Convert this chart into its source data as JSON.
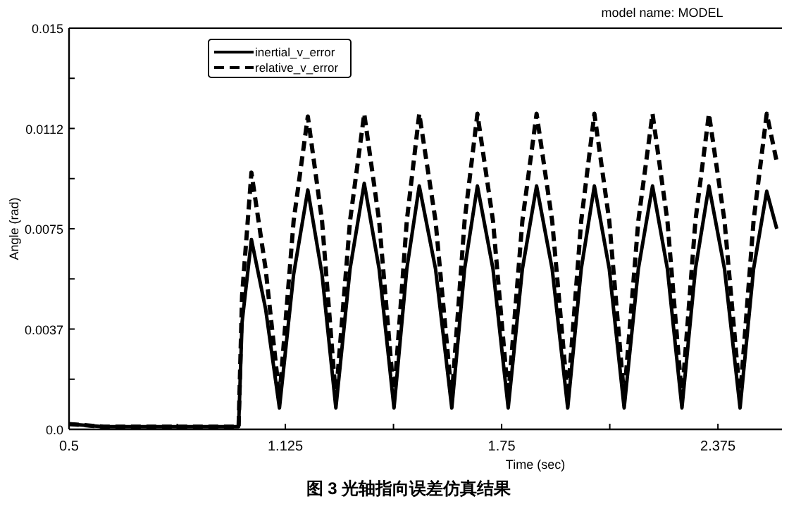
{
  "chart_data": {
    "type": "line",
    "title": "model name: MODEL",
    "xlabel": "Time (sec)",
    "ylabel": "Angle (rad)",
    "annotations": [
      "图 3    光轴指向误差仿真结果"
    ],
    "xlim": [
      0.5,
      2.56
    ],
    "ylim": [
      0,
      0.015
    ],
    "xticks": [
      0.5,
      {
        "value": 0.8125,
        "label": null
      },
      1.125,
      {
        "value": 1.4375,
        "label": null
      },
      1.75,
      {
        "value": 2.0625,
        "label": null
      },
      2.375
    ],
    "yticks": [
      {
        "value": 0,
        "label": "0.0"
      },
      {
        "value": 0.001875,
        "label": null
      },
      {
        "value": 0.00375,
        "label": "0.0037"
      },
      {
        "value": 0.005625,
        "label": null
      },
      0.0075,
      {
        "value": 0.009375,
        "label": null
      },
      {
        "value": 0.01125,
        "label": "0.0112"
      },
      {
        "value": 0.013125,
        "label": null
      },
      0.015
    ],
    "grid": false,
    "legend": "top left",
    "marker": "none",
    "x": [
      0.5,
      0.6,
      0.99,
      1.0,
      1.027,
      1.068,
      1.108,
      1.149,
      1.19,
      1.231,
      1.271,
      1.312,
      1.353,
      1.396,
      1.439,
      1.476,
      1.512,
      1.559,
      1.606,
      1.643,
      1.68,
      1.725,
      1.769,
      1.81,
      1.851,
      1.896,
      1.941,
      1.98,
      2.018,
      2.061,
      2.104,
      2.145,
      2.186,
      2.229,
      2.271,
      2.31,
      2.349,
      2.394,
      2.439,
      2.478,
      2.516,
      2.545
    ],
    "series": [
      {
        "name": "inertial_v_error",
        "color": "#000000",
        "line_style": "solid",
        "values": [
          0.0002,
          0.0001,
          0.0001,
          0.004,
          0.0071,
          0.0045,
          0.0008,
          0.0058,
          0.00895,
          0.0058,
          0.0008,
          0.006,
          0.0092,
          0.006,
          0.0008,
          0.006,
          0.0091,
          0.006,
          0.0008,
          0.006,
          0.0091,
          0.006,
          0.0008,
          0.006,
          0.0091,
          0.006,
          0.0008,
          0.006,
          0.0091,
          0.006,
          0.0008,
          0.006,
          0.0091,
          0.006,
          0.0008,
          0.006,
          0.0091,
          0.006,
          0.0008,
          0.006,
          0.0089,
          0.0075
        ]
      },
      {
        "name": "relative_v_error",
        "color": "#000000",
        "line_style": "dashed",
        "values": [
          0.0002,
          0.0001,
          0.0001,
          0.005,
          0.0096,
          0.006,
          0.0012,
          0.0078,
          0.0117,
          0.0078,
          0.0012,
          0.0078,
          0.0118,
          0.0078,
          0.0012,
          0.0078,
          0.0118,
          0.0078,
          0.0012,
          0.0078,
          0.0118,
          0.0078,
          0.0012,
          0.0078,
          0.0118,
          0.0078,
          0.0012,
          0.0078,
          0.0118,
          0.0078,
          0.0012,
          0.0078,
          0.0118,
          0.0078,
          0.0012,
          0.0078,
          0.0118,
          0.0078,
          0.0012,
          0.0078,
          0.0118,
          0.01
        ]
      }
    ]
  }
}
